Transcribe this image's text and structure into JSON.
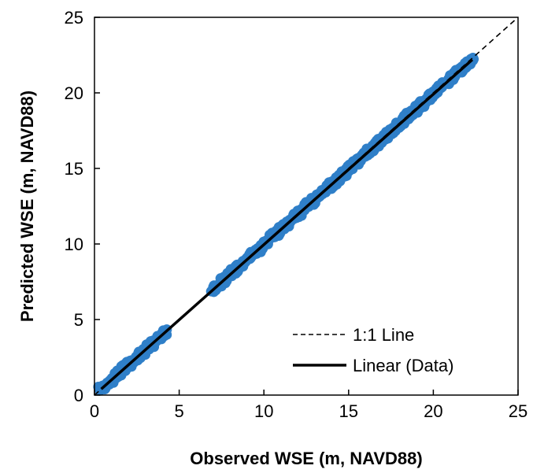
{
  "chart_data": {
    "type": "scatter",
    "xlabel": "Observed WSE (m, NAVD88)",
    "ylabel": "Predicted WSE (m, NAVD88)",
    "xlim": [
      0,
      25
    ],
    "ylim": [
      0,
      25
    ],
    "xticks": [
      "0",
      "5",
      "10",
      "15",
      "20",
      "25"
    ],
    "yticks": [
      "0",
      "5",
      "10",
      "15",
      "20",
      "25"
    ],
    "grid": false,
    "legend_position": "bottom-right",
    "colors": {
      "data": "#2f7fc8",
      "fit": "#000000",
      "one_to_one": "#000000"
    },
    "series": [
      {
        "kind": "scatter",
        "segments": [
          {
            "x": [
              0.4,
              4.2
            ],
            "y": [
              0.4,
              4.2
            ]
          },
          {
            "x": [
              7.0,
              22.3
            ],
            "y": [
              7.0,
              22.2
            ]
          }
        ]
      },
      {
        "name": "1:1 Line",
        "kind": "line",
        "style": "dashed",
        "x": [
          0,
          25
        ],
        "y": [
          0,
          25
        ]
      },
      {
        "name": "Linear (Data)",
        "kind": "line",
        "style": "solid",
        "x": [
          0.4,
          22.3
        ],
        "y": [
          0.4,
          22.2
        ]
      }
    ]
  }
}
